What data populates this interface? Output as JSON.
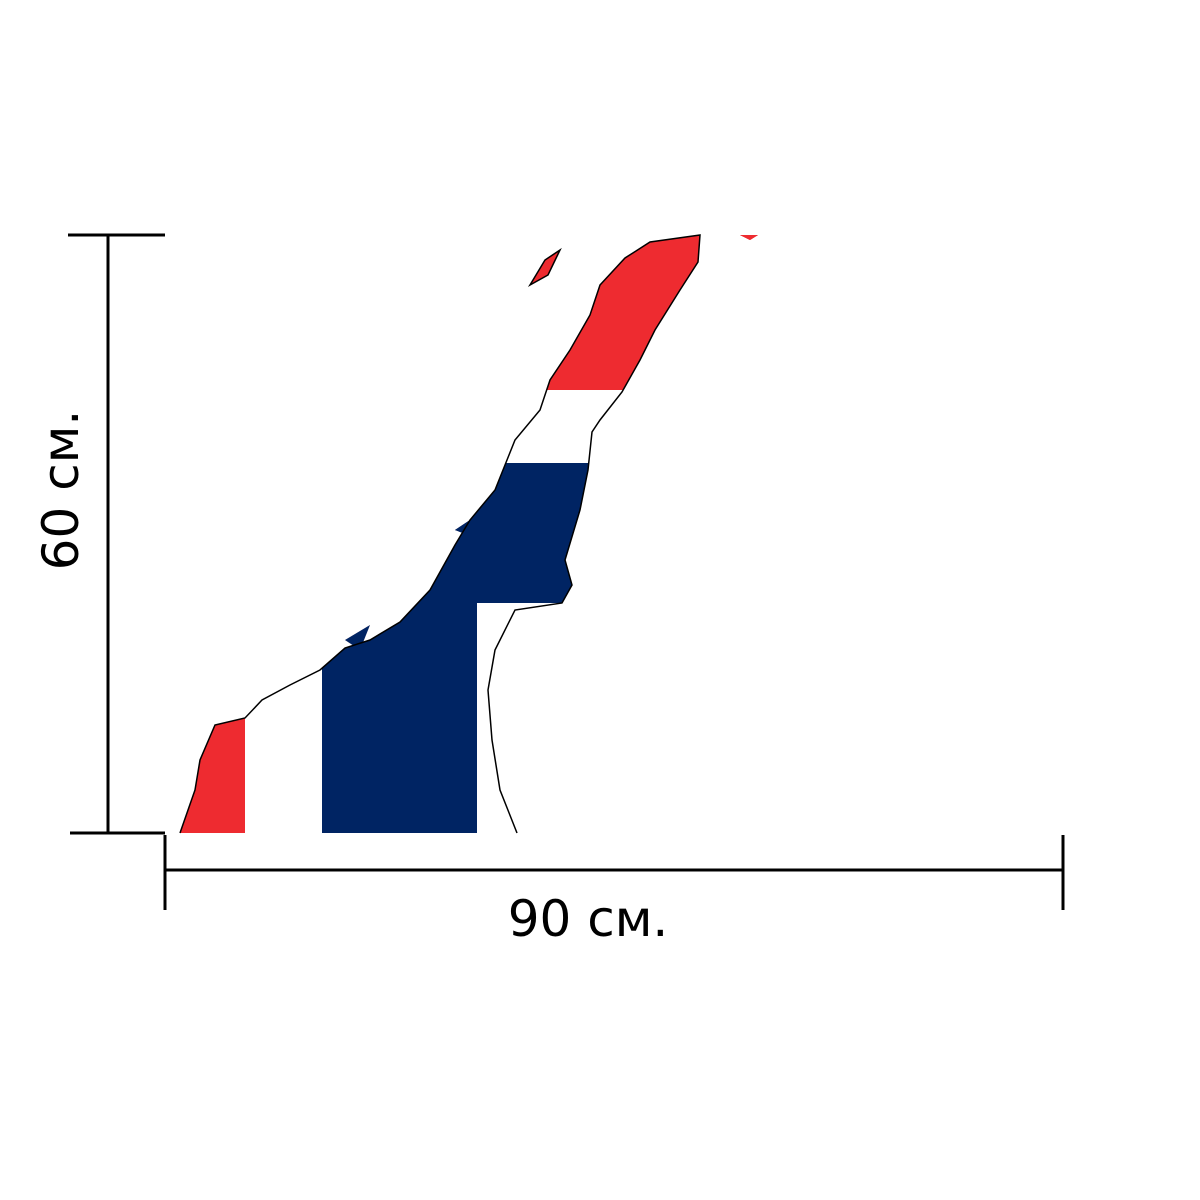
{
  "dimensions": {
    "height": "60 см.",
    "width": "90 см."
  }
}
